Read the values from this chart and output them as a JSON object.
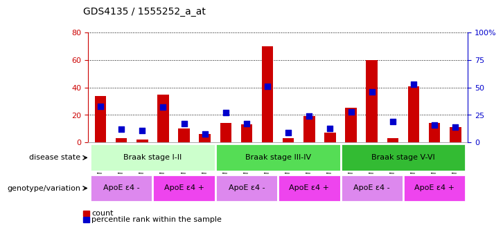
{
  "title": "GDS4135 / 1555252_a_at",
  "samples": [
    "GSM735097",
    "GSM735098",
    "GSM735099",
    "GSM735094",
    "GSM735095",
    "GSM735096",
    "GSM735103",
    "GSM735104",
    "GSM735105",
    "GSM735100",
    "GSM735101",
    "GSM735102",
    "GSM735109",
    "GSM735110",
    "GSM735111",
    "GSM735106",
    "GSM735107",
    "GSM735108"
  ],
  "counts": [
    34,
    3,
    2,
    35,
    10,
    6,
    14,
    13,
    70,
    3,
    19,
    7,
    25,
    60,
    3,
    41,
    14,
    11
  ],
  "percentiles": [
    33,
    12,
    11,
    32,
    17,
    8,
    27,
    17,
    51,
    9,
    24,
    13,
    28,
    46,
    19,
    53,
    16,
    14
  ],
  "bar_color": "#cc0000",
  "dot_color": "#0000cc",
  "left_ylim": [
    0,
    80
  ],
  "right_ylim": [
    0,
    100
  ],
  "left_yticks": [
    0,
    20,
    40,
    60,
    80
  ],
  "right_yticks": [
    0,
    25,
    50,
    75,
    100
  ],
  "right_yticklabels": [
    "0",
    "25",
    "50",
    "75",
    "100%"
  ],
  "disease_state_groups": [
    {
      "label": "Braak stage I-II",
      "start": 0,
      "end": 6,
      "color": "#ccffcc"
    },
    {
      "label": "Braak stage III-IV",
      "start": 6,
      "end": 12,
      "color": "#55dd55"
    },
    {
      "label": "Braak stage V-VI",
      "start": 12,
      "end": 18,
      "color": "#33bb33"
    }
  ],
  "genotype_groups": [
    {
      "label": "ApoE ε4 -",
      "start": 0,
      "end": 3,
      "color": "#dd88ee"
    },
    {
      "label": "ApoE ε4 +",
      "start": 3,
      "end": 6,
      "color": "#ee44ee"
    },
    {
      "label": "ApoE ε4 -",
      "start": 6,
      "end": 9,
      "color": "#dd88ee"
    },
    {
      "label": "ApoE ε4 +",
      "start": 9,
      "end": 12,
      "color": "#ee44ee"
    },
    {
      "label": "ApoE ε4 -",
      "start": 12,
      "end": 15,
      "color": "#dd88ee"
    },
    {
      "label": "ApoE ε4 +",
      "start": 15,
      "end": 18,
      "color": "#ee44ee"
    }
  ],
  "disease_label": "disease state",
  "genotype_label": "genotype/variation",
  "legend_count_label": "count",
  "legend_percentile_label": "percentile rank within the sample",
  "bg_color": "#ffffff",
  "axis_left_color": "#cc0000",
  "axis_right_color": "#0000cc"
}
